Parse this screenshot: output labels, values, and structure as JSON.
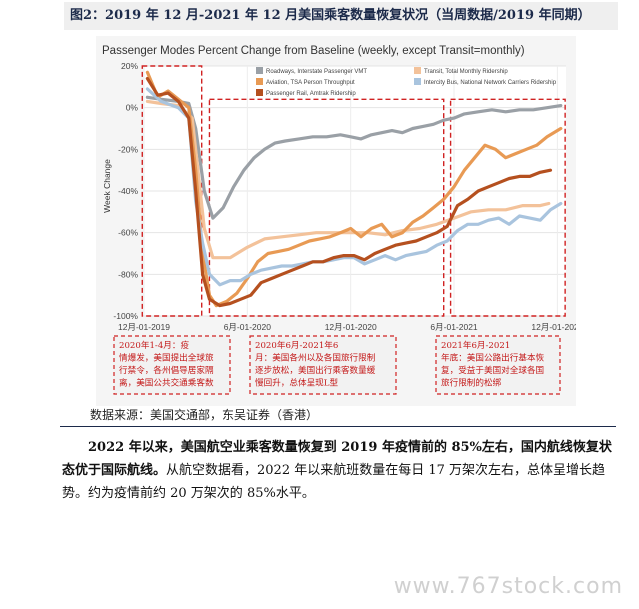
{
  "figure": {
    "title": "图2：2019 年 12 月-2021 年 12 月美国乘客数量恢复状况（当周数据/2019 年同期）"
  },
  "source": "数据来源：美国交通部，东吴证券（香港）",
  "paragraph": {
    "bold": "2022 年以来，美国航空业乘客数量恢复到 2019 年疫情前的 85%左右，国内航线恢复状态优于国际航线。",
    "rest": "从航空数据看，2022 年以来航班数量在每日 17 万架次左右，总体呈增长趋势。约为疫情前约 20 万架次的 85%水平。"
  },
  "watermark": "www.767stock.com",
  "annotations": [
    {
      "title": "2020年1-4月：",
      "text": "疫情爆发，美国提出全球旅行禁令，各州倡导居家隔离，美国公共交通乘客数量骤减"
    },
    {
      "title": "2020年6月-2021年6月：",
      "text": "美国各州以及各国旅行限制逐步放松，美国出行乘客数量缓慢回升，总体呈现L型"
    },
    {
      "title": "2021年6月-2021年底：",
      "text": "美国公路出行基本恢复，受益于美国对全球各国旅行限制的松绑"
    }
  ],
  "chart_data": {
    "type": "line",
    "title": "Passenger Modes Percent Change from Baseline (weekly, except Transit=monthly)",
    "ylabel": "Week Change",
    "xlabel": "",
    "ylim": [
      -100,
      20
    ],
    "xlim": [
      0,
      24.5
    ],
    "x_unit": "months since 12月-01-2019",
    "x_ticks": [
      {
        "x": 0,
        "label": "12月-01-2019"
      },
      {
        "x": 6,
        "label": "6月-01-2020"
      },
      {
        "x": 12,
        "label": "12月-01-2020"
      },
      {
        "x": 18,
        "label": "6月-01-2021"
      },
      {
        "x": 24,
        "label": "12月-01-2021"
      }
    ],
    "y_ticks": [
      {
        "y": 20,
        "label": "20%"
      },
      {
        "y": 0,
        "label": "0%"
      },
      {
        "y": -20,
        "label": "-20%"
      },
      {
        "y": -40,
        "label": "-40%"
      },
      {
        "y": -60,
        "label": "-60%"
      },
      {
        "y": -80,
        "label": "-80%"
      },
      {
        "y": -100,
        "label": "-100%"
      }
    ],
    "legend_position": "top",
    "series": [
      {
        "name": "Roadways, Interstate Passenger VMT",
        "color": "#9aa0a6",
        "points": [
          [
            0.2,
            5
          ],
          [
            1,
            4
          ],
          [
            2,
            3
          ],
          [
            2.6,
            2
          ],
          [
            3,
            -10
          ],
          [
            3.5,
            -40
          ],
          [
            4,
            -53
          ],
          [
            4.6,
            -48
          ],
          [
            5.2,
            -38
          ],
          [
            5.8,
            -30
          ],
          [
            6.4,
            -24
          ],
          [
            7,
            -20
          ],
          [
            7.6,
            -17
          ],
          [
            8.2,
            -16
          ],
          [
            9,
            -15
          ],
          [
            9.8,
            -14
          ],
          [
            10.6,
            -14
          ],
          [
            11.4,
            -13
          ],
          [
            12,
            -14
          ],
          [
            12.6,
            -15
          ],
          [
            13.2,
            -13
          ],
          [
            13.8,
            -12
          ],
          [
            14.4,
            -11
          ],
          [
            15,
            -12
          ],
          [
            15.6,
            -10
          ],
          [
            16.2,
            -9
          ],
          [
            16.8,
            -8
          ],
          [
            17.4,
            -6
          ],
          [
            18,
            -5
          ],
          [
            18.6,
            -3
          ],
          [
            19.4,
            -2
          ],
          [
            20.2,
            -1
          ],
          [
            21,
            -2
          ],
          [
            21.8,
            -1
          ],
          [
            22.6,
            -1
          ],
          [
            23.4,
            0
          ],
          [
            24.2,
            1
          ]
        ]
      },
      {
        "name": "Transit, Total Monthly Ridership",
        "color": "#f3c29a",
        "points": [
          [
            0.2,
            3
          ],
          [
            1,
            2
          ],
          [
            2,
            1
          ],
          [
            2.8,
            -5
          ],
          [
            3.5,
            -58
          ],
          [
            4,
            -72
          ],
          [
            5,
            -72
          ],
          [
            6,
            -67
          ],
          [
            7,
            -63
          ],
          [
            8,
            -62
          ],
          [
            9,
            -61
          ],
          [
            10,
            -60
          ],
          [
            11,
            -60
          ],
          [
            12,
            -60
          ],
          [
            13,
            -60
          ],
          [
            14,
            -61
          ],
          [
            15,
            -59
          ],
          [
            16,
            -58
          ],
          [
            17,
            -56
          ],
          [
            18,
            -53
          ],
          [
            19,
            -50
          ],
          [
            20,
            -49
          ],
          [
            21,
            -49
          ],
          [
            22,
            -47
          ],
          [
            23,
            -47
          ],
          [
            23.5,
            -46
          ]
        ]
      },
      {
        "name": "Aviation, TSA Person Throughput",
        "color": "#e89a54",
        "points": [
          [
            0.2,
            17
          ],
          [
            0.8,
            5
          ],
          [
            1.4,
            8
          ],
          [
            2,
            4
          ],
          [
            2.6,
            0
          ],
          [
            3,
            -30
          ],
          [
            3.4,
            -70
          ],
          [
            3.8,
            -90
          ],
          [
            4.2,
            -95
          ],
          [
            4.8,
            -93
          ],
          [
            5.4,
            -89
          ],
          [
            6,
            -82
          ],
          [
            6.6,
            -74
          ],
          [
            7.2,
            -70
          ],
          [
            7.8,
            -69
          ],
          [
            8.4,
            -68
          ],
          [
            9,
            -66
          ],
          [
            9.6,
            -64
          ],
          [
            10.2,
            -63
          ],
          [
            10.8,
            -62
          ],
          [
            11.4,
            -60
          ],
          [
            12,
            -58
          ],
          [
            12.6,
            -62
          ],
          [
            13.2,
            -58
          ],
          [
            13.8,
            -56
          ],
          [
            14.4,
            -62
          ],
          [
            15,
            -60
          ],
          [
            15.6,
            -55
          ],
          [
            16.2,
            -52
          ],
          [
            16.8,
            -48
          ],
          [
            17.4,
            -44
          ],
          [
            18,
            -38
          ],
          [
            18.6,
            -30
          ],
          [
            19.2,
            -24
          ],
          [
            19.8,
            -18
          ],
          [
            20.4,
            -20
          ],
          [
            21,
            -24
          ],
          [
            21.6,
            -22
          ],
          [
            22.2,
            -20
          ],
          [
            22.8,
            -18
          ],
          [
            23.4,
            -14
          ],
          [
            24.2,
            -10
          ]
        ]
      },
      {
        "name": "Intercity Bus, National Network Carriers Ridership",
        "color": "#a9c4de",
        "points": [
          [
            0.2,
            9
          ],
          [
            1,
            3
          ],
          [
            2,
            0
          ],
          [
            2.6,
            -5
          ],
          [
            3,
            -45
          ],
          [
            3.4,
            -65
          ],
          [
            3.8,
            -80
          ],
          [
            4.4,
            -85
          ],
          [
            5,
            -83
          ],
          [
            5.6,
            -83
          ],
          [
            6.2,
            -80
          ],
          [
            6.8,
            -78
          ],
          [
            7.4,
            -77
          ],
          [
            8,
            -76
          ],
          [
            8.6,
            -76
          ],
          [
            9.2,
            -75
          ],
          [
            9.8,
            -74
          ],
          [
            10.4,
            -74
          ],
          [
            11,
            -73
          ],
          [
            11.6,
            -72
          ],
          [
            12.2,
            -72
          ],
          [
            12.8,
            -75
          ],
          [
            13.4,
            -73
          ],
          [
            14,
            -71
          ],
          [
            14.6,
            -73
          ],
          [
            15.2,
            -71
          ],
          [
            15.8,
            -70
          ],
          [
            16.4,
            -69
          ],
          [
            17,
            -66
          ],
          [
            17.6,
            -64
          ],
          [
            18.2,
            -59
          ],
          [
            18.8,
            -56
          ],
          [
            19.4,
            -56
          ],
          [
            20,
            -54
          ],
          [
            20.6,
            -53
          ],
          [
            21.2,
            -56
          ],
          [
            21.8,
            -52
          ],
          [
            22.4,
            -53
          ],
          [
            23,
            -54
          ],
          [
            23.6,
            -49
          ],
          [
            24.2,
            -46
          ]
        ]
      },
      {
        "name": "Passenger Rail, Amtrak Ridership",
        "color": "#b5501f",
        "points": [
          [
            0.2,
            14
          ],
          [
            0.8,
            6
          ],
          [
            1.4,
            7
          ],
          [
            2,
            3
          ],
          [
            2.6,
            -5
          ],
          [
            3,
            -40
          ],
          [
            3.4,
            -80
          ],
          [
            3.8,
            -92
          ],
          [
            4.4,
            -95
          ],
          [
            5,
            -94
          ],
          [
            5.6,
            -92
          ],
          [
            6.2,
            -90
          ],
          [
            6.8,
            -84
          ],
          [
            7.4,
            -82
          ],
          [
            8,
            -80
          ],
          [
            8.6,
            -78
          ],
          [
            9.2,
            -76
          ],
          [
            9.8,
            -74
          ],
          [
            10.4,
            -74
          ],
          [
            11,
            -72
          ],
          [
            11.6,
            -71
          ],
          [
            12.2,
            -71
          ],
          [
            12.8,
            -73
          ],
          [
            13.4,
            -70
          ],
          [
            14,
            -68
          ],
          [
            14.6,
            -66
          ],
          [
            15.2,
            -65
          ],
          [
            15.8,
            -64
          ],
          [
            16.4,
            -62
          ],
          [
            17,
            -60
          ],
          [
            17.6,
            -57
          ],
          [
            18.2,
            -47
          ],
          [
            18.8,
            -44
          ],
          [
            19.4,
            -40
          ],
          [
            20,
            -38
          ],
          [
            20.6,
            -36
          ],
          [
            21.2,
            -34
          ],
          [
            21.8,
            -33
          ],
          [
            22.4,
            -33
          ],
          [
            23,
            -31
          ],
          [
            23.6,
            -30
          ]
        ]
      }
    ]
  }
}
